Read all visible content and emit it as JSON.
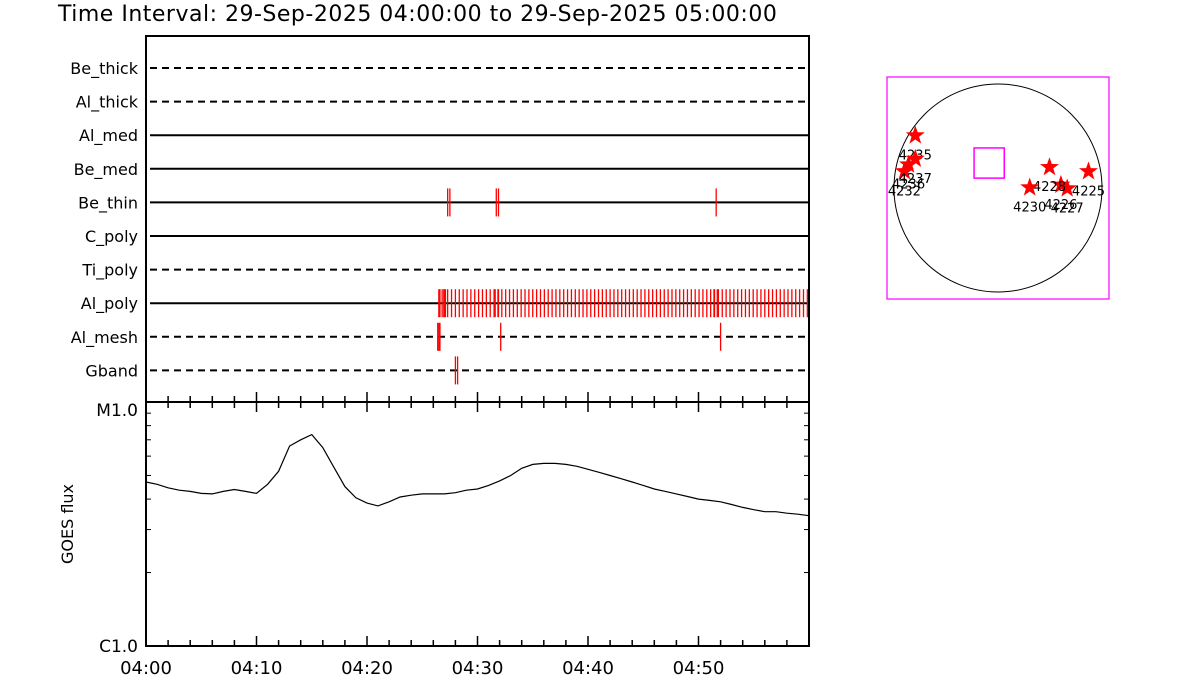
{
  "title": "Time Interval: 29-Sep-2025 04:00:00 to 29-Sep-2025 05:00:00",
  "colors": {
    "event": "#ff0000",
    "axis": "#000000",
    "fov": "#ff00ff",
    "star": "#ff0000"
  },
  "chart_data": [
    {
      "type": "event-timeline",
      "xlim": [
        "04:00",
        "05:00"
      ],
      "channels": [
        {
          "name": "Be_thick",
          "line": "dashed",
          "events": []
        },
        {
          "name": "Al_thick",
          "line": "dashed",
          "events": []
        },
        {
          "name": "Al_med",
          "line": "solid",
          "events": []
        },
        {
          "name": "Be_med",
          "line": "solid",
          "events": []
        },
        {
          "name": "Be_thin",
          "line": "solid",
          "events": [
            27.3,
            27.5,
            31.7,
            31.9,
            51.6
          ]
        },
        {
          "name": "C_poly",
          "line": "solid",
          "events": []
        },
        {
          "name": "Ti_poly",
          "line": "dashed",
          "events": []
        },
        {
          "name": "Al_poly",
          "line": "solid",
          "cadence_start": 26.6,
          "cadence_step": 0.35,
          "cadence_end": 59.9,
          "events": [
            26.5,
            26.8,
            27.0,
            27.1,
            31.6,
            31.9,
            51.4,
            51.7
          ]
        },
        {
          "name": "Al_mesh",
          "line": "dashed",
          "events": [
            26.4,
            26.5,
            26.6,
            32.1,
            52.0
          ]
        },
        {
          "name": "Gband",
          "line": "dashed",
          "events": [
            28.0,
            28.2
          ]
        }
      ]
    },
    {
      "type": "line",
      "ylabel": "GOES flux",
      "yscale": "log",
      "ylim": [
        "C1.0",
        "M1.0"
      ],
      "ylim_values": [
        1e-06,
        1e-05
      ],
      "xlim": [
        "04:00",
        "05:00"
      ],
      "x_ticks": [
        "04:00",
        "04:10",
        "04:20",
        "04:30",
        "04:40",
        "04:50"
      ],
      "y_ticks": [
        "C1.0",
        "M1.0"
      ],
      "x_minutes": [
        0,
        1,
        2,
        3,
        4,
        5,
        6,
        7,
        8,
        9,
        10,
        11,
        12,
        13,
        14,
        15,
        16,
        17,
        18,
        19,
        20,
        21,
        22,
        23,
        24,
        25,
        26,
        27,
        28,
        29,
        30,
        31,
        32,
        33,
        34,
        35,
        36,
        37,
        38,
        39,
        40,
        41,
        42,
        43,
        44,
        45,
        46,
        47,
        48,
        49,
        50,
        51,
        52,
        53,
        54,
        55,
        56,
        57,
        58,
        59,
        60
      ],
      "values": [
        4.7e-06,
        4.6e-06,
        4.45e-06,
        4.35e-06,
        4.3e-06,
        4.22e-06,
        4.2e-06,
        4.3e-06,
        4.38e-06,
        4.3e-06,
        4.22e-06,
        4.6e-06,
        5.2e-06,
        6.6e-06,
        7e-06,
        7.35e-06,
        6.5e-06,
        5.4e-06,
        4.5e-06,
        4.05e-06,
        3.85e-06,
        3.75e-06,
        3.9e-06,
        4.08e-06,
        4.15e-06,
        4.2e-06,
        4.2e-06,
        4.2e-06,
        4.25e-06,
        4.35e-06,
        4.4e-06,
        4.55e-06,
        4.75e-06,
        5e-06,
        5.35e-06,
        5.55e-06,
        5.6e-06,
        5.6e-06,
        5.55e-06,
        5.45e-06,
        5.3e-06,
        5.15e-06,
        5e-06,
        4.85e-06,
        4.7e-06,
        4.55e-06,
        4.4e-06,
        4.3e-06,
        4.2e-06,
        4.1e-06,
        4e-06,
        3.95e-06,
        3.9e-06,
        3.8e-06,
        3.7e-06,
        3.62e-06,
        3.55e-06,
        3.55e-06,
        3.5e-06,
        3.47e-06,
        3.42e-06
      ]
    },
    {
      "type": "scatter",
      "subtype": "solar-disk-map",
      "points": [
        {
          "label": "4225",
          "x": 870,
          "y": 160
        },
        {
          "label": "4226",
          "x": 605,
          "y": 30
        },
        {
          "label": "4227",
          "x": 665,
          "y": -5
        },
        {
          "label": "4228",
          "x": 495,
          "y": 200
        },
        {
          "label": "4230",
          "x": 305,
          "y": 5
        },
        {
          "label": "4232",
          "x": -900,
          "y": 160
        },
        {
          "label": "4235",
          "x": -795,
          "y": 505
        },
        {
          "label": "4236",
          "x": -860,
          "y": 225
        },
        {
          "label": "4237",
          "x": -795,
          "y": 280
        }
      ],
      "fov": {
        "center": [
          -85,
          240
        ],
        "width": 290,
        "height": 290
      }
    }
  ]
}
